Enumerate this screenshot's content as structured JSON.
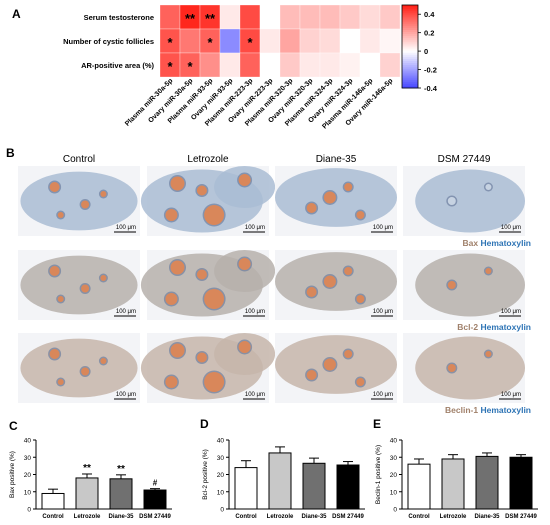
{
  "panel_letters": {
    "A": "A",
    "B": "B",
    "C": "C",
    "D": "D",
    "E": "E"
  },
  "chart_data": [
    {
      "type": "heatmap",
      "panel": "A",
      "rows": [
        "Serum testosterone",
        "Number of cystic follicles",
        "AR-positive area (%)"
      ],
      "columns": [
        "Plasma miR-30a-5p",
        "Ovary miR-30a-5p",
        "Plasma miR-93-5p",
        "Ovary miR-93-5p",
        "Plasma miR-223-3p",
        "Ovary miR-223-3p",
        "Plasma miR-320-3p",
        "Ovary miR-320-3p",
        "Plasma miR-324-3p",
        "Ovary miR-324-3p",
        "Plasma miR-146a-5p",
        "Ovary miR-146a-5p"
      ],
      "values": [
        [
          0.35,
          0.48,
          0.45,
          0.05,
          0.4,
          0.0,
          0.15,
          0.15,
          0.15,
          0.12,
          0.08,
          0.12
        ],
        [
          0.38,
          0.3,
          0.35,
          -0.25,
          0.4,
          0.05,
          0.2,
          0.1,
          0.08,
          0.0,
          0.05,
          0.02
        ],
        [
          0.38,
          0.35,
          0.25,
          0.05,
          0.35,
          0.0,
          0.12,
          0.05,
          0.05,
          0.03,
          0.0,
          0.1
        ]
      ],
      "annotations": [
        [
          "",
          "**",
          "**",
          "",
          "",
          "",
          "",
          "",
          "",
          "",
          "",
          ""
        ],
        [
          "*",
          "",
          "*",
          "",
          "*",
          "",
          "",
          "",
          "",
          "",
          "",
          ""
        ],
        [
          "*",
          "*",
          "",
          "",
          "",
          "",
          "",
          "",
          "",
          "",
          "",
          ""
        ]
      ],
      "colorbar": {
        "range": [
          -0.4,
          0.5
        ],
        "ticks": [
          "0.4",
          "0.2",
          "0",
          "-0.2",
          "-0.4"
        ],
        "tick_values": [
          0.4,
          0.2,
          0,
          -0.2,
          -0.4
        ]
      }
    },
    {
      "type": "bar",
      "panel": "C",
      "categories": [
        "Control",
        "Letrozole",
        "Diane-35",
        "DSM 27449"
      ],
      "values": [
        9,
        18,
        17.5,
        11
      ],
      "errors": [
        2.5,
        2.3,
        2.3,
        0.8
      ],
      "bar_colors": [
        "#ffffff",
        "#c8c8c8",
        "#707070",
        "#000000"
      ],
      "significance": [
        "",
        "**",
        "**",
        "#"
      ],
      "ylabel": "Bax positive (%)",
      "ylim": [
        0,
        40
      ],
      "yticks": [
        "0",
        "10",
        "20",
        "30",
        "40"
      ]
    },
    {
      "type": "bar",
      "panel": "D",
      "categories": [
        "Control",
        "Letrozole",
        "Diane-35",
        "DSM 27449"
      ],
      "values": [
        24,
        32.5,
        26.5,
        25.5
      ],
      "errors": [
        4,
        3.5,
        3,
        2
      ],
      "bar_colors": [
        "#ffffff",
        "#c8c8c8",
        "#707070",
        "#000000"
      ],
      "significance": [
        "",
        "",
        "",
        ""
      ],
      "ylabel": "Bcl-2 positive (%)",
      "ylim": [
        0,
        40
      ],
      "yticks": [
        "0",
        "10",
        "20",
        "30",
        "40"
      ]
    },
    {
      "type": "bar",
      "panel": "E",
      "categories": [
        "Control",
        "Letrozole",
        "Diane-35",
        "DSM 27449"
      ],
      "values": [
        26,
        29,
        30.5,
        30
      ],
      "errors": [
        3,
        2.5,
        2,
        1.5
      ],
      "bar_colors": [
        "#ffffff",
        "#c8c8c8",
        "#707070",
        "#000000"
      ],
      "significance": [
        "",
        "",
        "",
        ""
      ],
      "ylabel": "Beclin-1 positive (%)",
      "ylim": [
        0,
        40
      ],
      "yticks": [
        "0",
        "10",
        "20",
        "30",
        "40"
      ]
    }
  ],
  "histology": {
    "columns": [
      "Control",
      "Letrozole",
      "Diane-35",
      "DSM 27449"
    ],
    "scale_bar": "100 μm",
    "rows": [
      {
        "stain": "Bax",
        "counterstain": "Hematoxylin"
      },
      {
        "stain": "Bcl-2",
        "counterstain": "Hematoxylin"
      },
      {
        "stain": "Beclin-1",
        "counterstain": "Hematoxylin"
      }
    ]
  },
  "colors": {
    "stain_brown": "#a0806a",
    "hematoxylin_blue": "#2e74b5",
    "tissue_blue": "#9fb3cc",
    "follicle_orange": "#d9875a"
  }
}
